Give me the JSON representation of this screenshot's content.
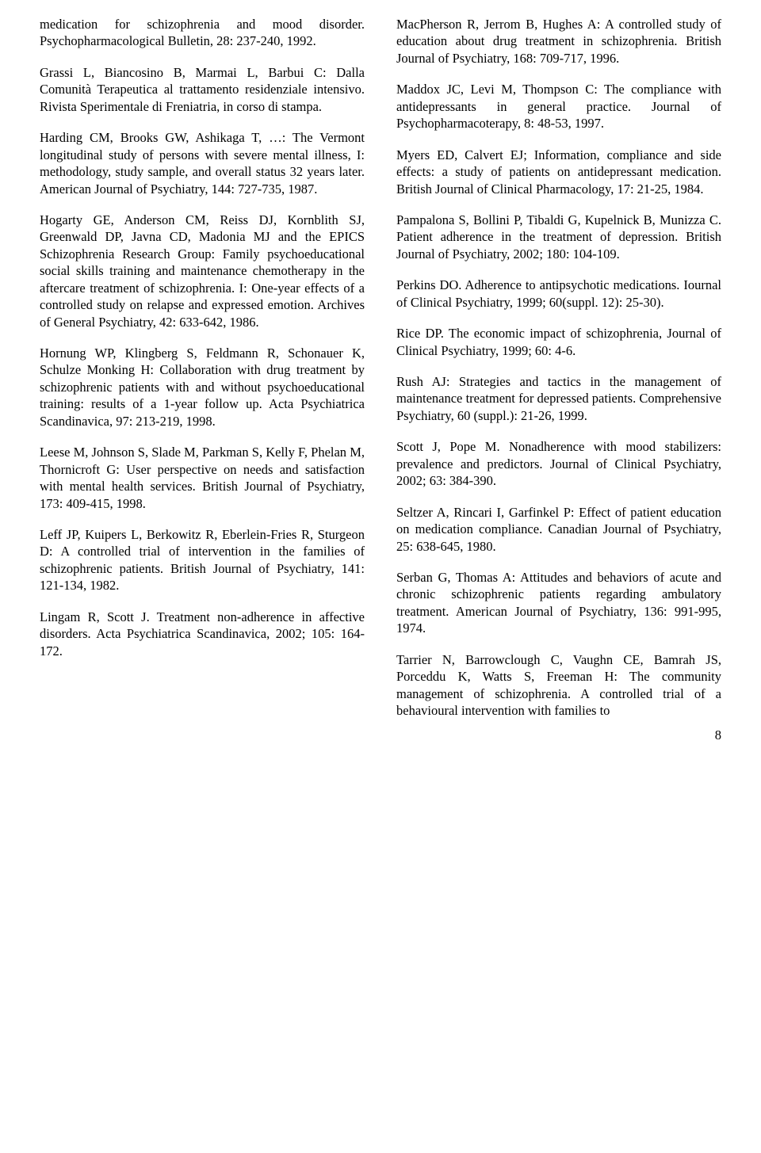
{
  "page_number": "8",
  "left_column": [
    "medication for schizophrenia and mood disorder. Psychopharmacological Bulletin, 28: 237-240, 1992.",
    "Grassi L, Biancosino B, Marmai L, Barbui C: Dalla Comunità Terapeutica al trattamento residenziale intensivo. Rivista Sperimentale di Freniatria, in corso di stampa.",
    "Harding CM, Brooks GW, Ashikaga T, …: The Vermont longitudinal study of persons with severe mental illness, I: methodology, study sample, and overall status 32 years later. American Journal of Psychiatry, 144: 727-735, 1987.",
    "Hogarty GE, Anderson CM, Reiss DJ, Kornblith SJ, Greenwald DP, Javna CD, Madonia MJ and the EPICS Schizophrenia Research Group: Family psychoeducational social skills training and maintenance chemotherapy in the aftercare treatment of schizophrenia. I: One-year effects of a controlled study on relapse and expressed emotion. Archives of General Psychiatry, 42: 633-642, 1986.",
    "Hornung WP, Klingberg S, Feldmann R, Schonauer K, Schulze Monking H: Collaboration with drug treatment by schizophrenic patients with and without psychoeducational training: results of a 1-year follow up. Acta Psychiatrica Scandinavica, 97: 213-219, 1998.",
    "Leese M, Johnson S, Slade M, Parkman S, Kelly F, Phelan M, Thornicroft G: User perspective on needs and satisfaction with mental health services. British Journal of Psychiatry, 173: 409-415, 1998.",
    "Leff JP, Kuipers L, Berkowitz R, Eberlein-Fries R, Sturgeon D: A controlled trial of intervention in the families of schizophrenic patients. British Journal of Psychiatry, 141: 121-134, 1982.",
    "Lingam R, Scott J. Treatment non-adherence in affective disorders. Acta Psychiatrica Scandinavica, 2002; 105: 164-172."
  ],
  "right_column": [
    "MacPherson R, Jerrom B, Hughes A: A controlled study of education about drug treatment in schizophrenia. British Journal of Psychiatry, 168: 709-717, 1996.",
    "Maddox JC, Levi M, Thompson C: The compliance with antidepressants in general practice. Journal of Psychopharmacoterapy, 8: 48-53, 1997.",
    "Myers ED, Calvert EJ; Information, compliance and side effects: a study of patients on antidepressant medication. British Journal of Clinical Pharmacology, 17: 21-25, 1984.",
    "Pampalona S, Bollini P, Tibaldi G, Kupelnick B, Munizza C. Patient adherence in the treatment of depression. British Journal of Psychiatry, 2002; 180: 104-109.",
    "Perkins DO. Adherence to antipsychotic medications. Iournal of Clinical Psychiatry, 1999; 60(suppl. 12): 25-30).",
    "Rice DP. The economic impact of schizophrenia, Journal of Clinical Psychiatry, 1999; 60: 4-6.",
    "Rush AJ: Strategies and tactics in the management of maintenance treatment for depressed patients. Comprehensive Psychiatry, 60 (suppl.): 21-26, 1999.",
    "Scott J, Pope M. Nonadherence with mood stabilizers: prevalence and predictors. Journal of Clinical Psychiatry, 2002; 63: 384-390.",
    "Seltzer A, Rincari I, Garfinkel P: Effect of patient education on medication compliance. Canadian Journal of Psychiatry, 25: 638-645, 1980.",
    "Serban G, Thomas A: Attitudes and behaviors of acute and chronic schizophrenic patients regarding ambulatory treatment. American Journal of Psychiatry, 136: 991-995, 1974.",
    "Tarrier N, Barrowclough C, Vaughn CE, Bamrah JS, Porceddu K, Watts S, Freeman H: The community management of schizophrenia. A controlled trial of a behavioural intervention with families to"
  ]
}
